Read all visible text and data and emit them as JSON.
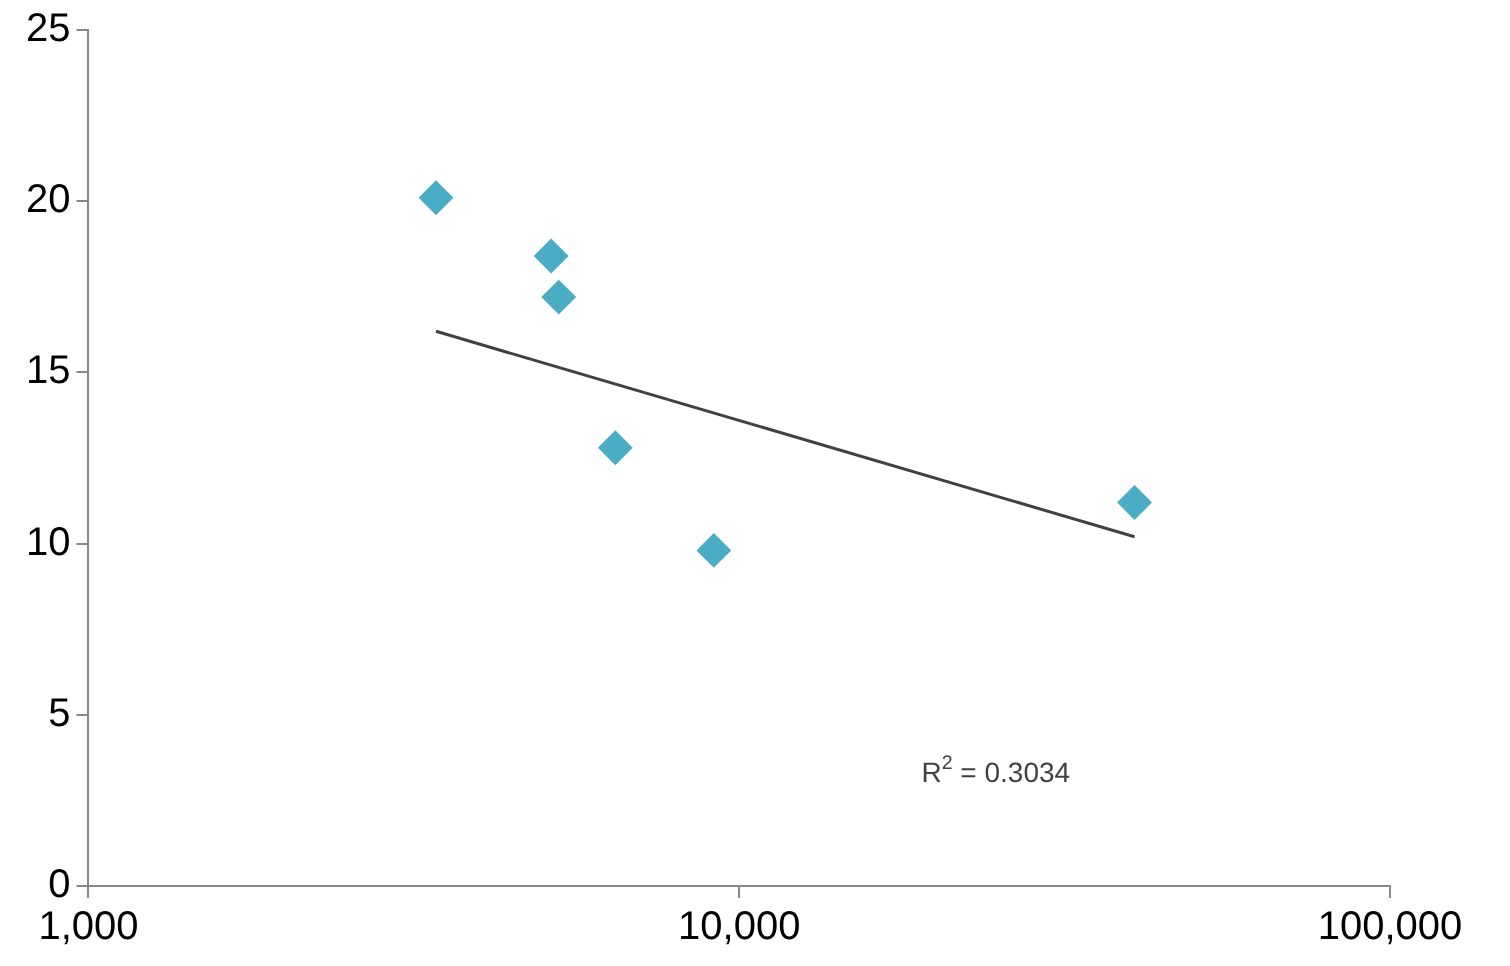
{
  "chart_data": {
    "type": "scatter",
    "log": "x",
    "marker": "diamond",
    "grid": false,
    "legend": false,
    "xlim": [
      1000,
      100000
    ],
    "xticks": [
      {
        "value": 1000,
        "label": "1,000"
      },
      {
        "value": 10000,
        "label": "10,000"
      },
      {
        "value": 100000,
        "label": "100,000"
      }
    ],
    "ylim": [
      0,
      25
    ],
    "yticks": [
      0,
      5,
      10,
      15,
      20,
      25
    ],
    "series": [
      {
        "color": "#4bacc6",
        "x": [
          3420,
          5140,
          5280,
          6450,
          9140,
          40500
        ],
        "values": [
          20.1,
          18.4,
          17.2,
          12.8,
          9.8,
          11.2
        ]
      },
      {
        "type": "line",
        "color": "#404040",
        "marker": "none",
        "x": [
          3420,
          40500
        ],
        "values": [
          16.2,
          10.2
        ]
      }
    ],
    "annotations": [
      "R$^{2}$ = 0.3034"
    ]
  }
}
